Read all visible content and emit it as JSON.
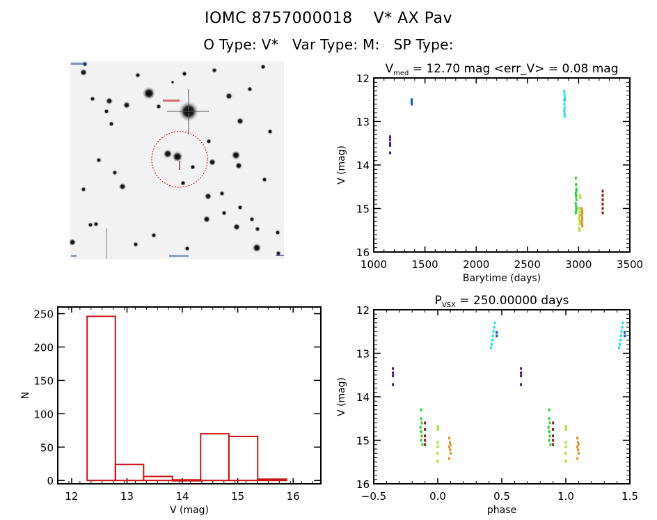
{
  "header": {
    "identifier": "IOMC 8757000018",
    "star_name": "V* AX Pav",
    "object_type": "O Type: V*",
    "var_type": "Var Type: M:",
    "sp_type": "SP Type:"
  },
  "sky_image": {
    "description": "DSS finder chart, inverted greyscale",
    "target_marker": "red dotted circle",
    "target_label_color": "#b00000"
  },
  "chart_data": [
    {
      "id": "light-curve",
      "type": "scatter",
      "title_main": "V",
      "title_sub": "med",
      "title_rest": " = 12.70 mag <err_V> = 0.08 mag",
      "xlabel": "Barytime (days)",
      "ylabel": "V (mag)",
      "xlim": [
        1000,
        3500
      ],
      "ylim": [
        16,
        12
      ],
      "y_inverted": true,
      "xticks": [
        1000,
        1500,
        2000,
        2500,
        3000,
        3500
      ],
      "yticks": [
        12,
        13,
        14,
        15,
        16
      ],
      "series": [
        {
          "name": "purple",
          "color": "#4a1a7a",
          "x": [
            1160,
            1160,
            1160,
            1160,
            1160
          ],
          "y": [
            13.35,
            13.42,
            13.5,
            13.55,
            13.72
          ]
        },
        {
          "name": "blue",
          "color": "#1a5ab8",
          "x": [
            1370,
            1372,
            1370,
            1372
          ],
          "y": [
            12.5,
            12.53,
            12.57,
            12.6
          ]
        },
        {
          "name": "cyan",
          "color": "#20e0e0",
          "x": [
            2860,
            2862,
            2864,
            2860,
            2862,
            2864,
            2860,
            2862,
            2864,
            2866
          ],
          "y": [
            12.3,
            12.38,
            12.45,
            12.52,
            12.6,
            12.68,
            12.75,
            12.82,
            12.88,
            12.5
          ]
        },
        {
          "name": "green",
          "color": "#20d830",
          "x": [
            2972,
            2975,
            2978,
            2972,
            2975,
            2978,
            2972,
            2975,
            2978,
            2975,
            2972,
            2978,
            2975
          ],
          "y": [
            14.3,
            14.45,
            14.55,
            14.65,
            14.72,
            14.8,
            14.88,
            14.95,
            15.0,
            15.05,
            15.1,
            14.6,
            14.7
          ]
        },
        {
          "name": "yellow-green",
          "color": "#a8e030",
          "x": [
            3005,
            3008,
            3010,
            3005,
            3008,
            3010,
            3005,
            3008,
            3015,
            3018
          ],
          "y": [
            15.0,
            15.08,
            15.15,
            15.22,
            15.28,
            15.35,
            15.45,
            15.5,
            14.7,
            14.75
          ]
        },
        {
          "name": "orange",
          "color": "#e09020",
          "x": [
            3030,
            3033,
            3036,
            3030,
            3033,
            3036,
            3030,
            3033,
            3036
          ],
          "y": [
            15.0,
            15.05,
            15.1,
            15.15,
            15.2,
            15.25,
            15.3,
            15.35,
            15.4
          ]
        },
        {
          "name": "dark-red",
          "color": "#a01818",
          "x": [
            3235,
            3235,
            3235,
            3235,
            3235,
            3235
          ],
          "y": [
            14.6,
            14.7,
            14.8,
            14.9,
            15.0,
            15.1
          ]
        }
      ]
    },
    {
      "id": "histogram",
      "type": "bar",
      "title": "",
      "xlabel": "V (mag)",
      "ylabel": "N",
      "xlim": [
        11.75,
        16.5
      ],
      "ylim": [
        -5,
        260
      ],
      "xticks": [
        12,
        13,
        14,
        15,
        16
      ],
      "yticks": [
        0,
        50,
        100,
        150,
        200,
        250
      ],
      "bin_edges": [
        12.28,
        12.79,
        13.3,
        13.82,
        14.33,
        14.84,
        15.36,
        15.88
      ],
      "values": [
        246,
        24,
        6,
        1,
        70,
        66,
        2
      ],
      "color": "#cc1414"
    },
    {
      "id": "phase-plot",
      "type": "scatter",
      "title_main": "P",
      "title_sub": "VSX",
      "title_rest": " = 250.00000 days",
      "xlabel": "phase",
      "ylabel": "V (mag)",
      "xlim": [
        -0.5,
        1.5
      ],
      "ylim": [
        16,
        12
      ],
      "y_inverted": true,
      "xticks": [
        -0.5,
        0.0,
        0.5,
        1.0,
        1.5
      ],
      "xtick_labels": [
        "-0.5",
        "0.0",
        "0.5",
        "1.0",
        "1.5"
      ],
      "yticks": [
        12,
        13,
        14,
        15,
        16
      ],
      "period_days": 250.0,
      "series": [
        {
          "name": "purple",
          "color": "#4a1a7a",
          "x": [
            -0.35,
            -0.35,
            -0.35,
            -0.35,
            0.65,
            0.65,
            0.65,
            0.65
          ],
          "y": [
            13.35,
            13.45,
            13.52,
            13.72,
            13.35,
            13.45,
            13.52,
            13.72
          ]
        },
        {
          "name": "blue",
          "color": "#1a5ab8",
          "x": [
            0.46,
            0.46,
            1.46,
            1.46
          ],
          "y": [
            12.52,
            12.6,
            12.52,
            12.6
          ]
        },
        {
          "name": "cyan",
          "color": "#20e0e0",
          "x": [
            0.445,
            0.44,
            0.435,
            0.43,
            0.425,
            0.42,
            0.415,
            1.445,
            1.44,
            1.435,
            1.43,
            1.425,
            1.42,
            1.415
          ],
          "y": [
            12.3,
            12.4,
            12.5,
            12.6,
            12.7,
            12.8,
            12.88,
            12.3,
            12.4,
            12.5,
            12.6,
            12.7,
            12.8,
            12.88
          ]
        },
        {
          "name": "green",
          "color": "#20d830",
          "x": [
            -0.13,
            -0.13,
            -0.125,
            -0.135,
            -0.13,
            -0.125,
            -0.13,
            -0.12,
            0.87,
            0.87,
            0.875,
            0.865,
            0.87,
            0.875,
            0.87,
            0.88
          ],
          "y": [
            14.3,
            14.5,
            14.6,
            14.7,
            14.8,
            14.9,
            15.0,
            15.1,
            14.3,
            14.5,
            14.6,
            14.7,
            14.8,
            14.9,
            15.0,
            15.1
          ]
        },
        {
          "name": "dark-red",
          "color": "#a01818",
          "x": [
            -0.1,
            -0.1,
            -0.1,
            -0.1,
            -0.1,
            0.9,
            0.9,
            0.9,
            0.9,
            0.9
          ],
          "y": [
            14.6,
            14.75,
            14.9,
            15.0,
            15.1,
            14.6,
            14.75,
            14.9,
            15.0,
            15.1
          ]
        },
        {
          "name": "yellow-green",
          "color": "#a8e030",
          "x": [
            0.0,
            0.0,
            0.0,
            0.0,
            0.0,
            0.0,
            1.0,
            1.0,
            1.0,
            1.0,
            1.0,
            1.0
          ],
          "y": [
            14.68,
            14.75,
            15.05,
            15.15,
            15.3,
            15.48,
            14.68,
            14.75,
            15.05,
            15.15,
            15.3,
            15.48
          ]
        },
        {
          "name": "orange",
          "color": "#e09020",
          "x": [
            0.09,
            0.095,
            0.1,
            0.09,
            0.095,
            0.1,
            0.09,
            1.09,
            1.095,
            1.1,
            1.09,
            1.095,
            1.1,
            1.09
          ],
          "y": [
            14.95,
            15.05,
            15.1,
            15.15,
            15.22,
            15.3,
            15.42,
            14.95,
            15.05,
            15.1,
            15.15,
            15.22,
            15.3,
            15.42
          ]
        }
      ]
    }
  ]
}
